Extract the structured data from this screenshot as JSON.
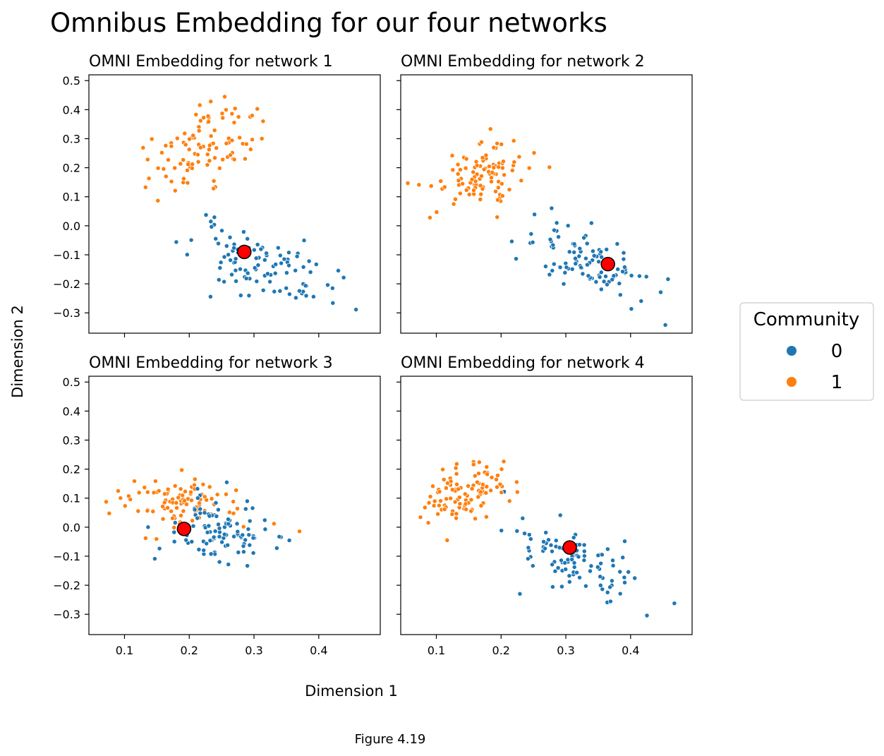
{
  "figure": {
    "title": "Omnibus Embedding for our four networks",
    "xlabel": "Dimension 1",
    "ylabel": "Dimension 2",
    "caption": "Figure 4.19"
  },
  "legend": {
    "title": "Community",
    "placement": "center-right, outside",
    "entries": [
      {
        "label": "0",
        "color": "#1f77b4"
      },
      {
        "label": "1",
        "color": "#ff7f0e"
      }
    ]
  },
  "colors": {
    "community_0": "#1f77b4",
    "community_1": "#ff7f0e",
    "marker": "#ff0000"
  },
  "chart_data": [
    {
      "type": "scatter",
      "title": "OMNI Embedding for network 1",
      "xlim": [
        0.045,
        0.495
      ],
      "ylim": [
        -0.37,
        0.52
      ],
      "xticks": [
        0.1,
        0.2,
        0.3,
        0.4
      ],
      "xtick_labels": [
        "0.1",
        "0.2",
        "0.3",
        "0.4"
      ],
      "yticks": [
        -0.3,
        -0.2,
        -0.1,
        0.0,
        0.1,
        0.2,
        0.3,
        0.4,
        0.5
      ],
      "ytick_labels": [
        "−0.3",
        "−0.2",
        "−0.1",
        "0.0",
        "0.1",
        "0.2",
        "0.3",
        "0.4",
        "0.5"
      ],
      "show_xticklabels": false,
      "show_yticklabels": true,
      "clusters": [
        {
          "community": 0,
          "cx": 0.31,
          "cy": -0.14,
          "sx": 0.055,
          "sy": 0.065,
          "rho": -0.55,
          "n": 100,
          "seed": 11
        },
        {
          "community": 1,
          "cx": 0.22,
          "cy": 0.27,
          "sx": 0.04,
          "sy": 0.07,
          "rho": 0.45,
          "n": 100,
          "seed": 12
        }
      ],
      "highlight": {
        "x": 0.285,
        "y": -0.09
      }
    },
    {
      "type": "scatter",
      "title": "OMNI Embedding for network 2",
      "xlim": [
        0.045,
        0.495
      ],
      "ylim": [
        -0.37,
        0.52
      ],
      "xticks": [
        0.1,
        0.2,
        0.3,
        0.4
      ],
      "xtick_labels": [
        "0.1",
        "0.2",
        "0.3",
        "0.4"
      ],
      "yticks": [
        -0.3,
        -0.2,
        -0.1,
        0.0,
        0.1,
        0.2,
        0.3,
        0.4,
        0.5
      ],
      "ytick_labels": [
        "−0.3",
        "−0.2",
        "−0.1",
        "0.0",
        "0.1",
        "0.2",
        "0.3",
        "0.4",
        "0.5"
      ],
      "show_xticklabels": false,
      "show_yticklabels": false,
      "clusters": [
        {
          "community": 0,
          "cx": 0.33,
          "cy": -0.12,
          "sx": 0.05,
          "sy": 0.065,
          "rho": -0.55,
          "n": 100,
          "seed": 21
        },
        {
          "community": 1,
          "cx": 0.165,
          "cy": 0.18,
          "sx": 0.035,
          "sy": 0.055,
          "rho": 0.4,
          "n": 100,
          "seed": 22
        }
      ],
      "highlight": {
        "x": 0.365,
        "y": -0.132
      }
    },
    {
      "type": "scatter",
      "title": "OMNI Embedding for network 3",
      "xlim": [
        0.045,
        0.495
      ],
      "ylim": [
        -0.37,
        0.52
      ],
      "xticks": [
        0.1,
        0.2,
        0.3,
        0.4
      ],
      "xtick_labels": [
        "0.1",
        "0.2",
        "0.3",
        "0.4"
      ],
      "yticks": [
        -0.3,
        -0.2,
        -0.1,
        0.0,
        0.1,
        0.2,
        0.3,
        0.4,
        0.5
      ],
      "ytick_labels": [
        "−0.3",
        "−0.2",
        "−0.1",
        "0.0",
        "0.1",
        "0.2",
        "0.3",
        "0.4",
        "0.5"
      ],
      "show_xticklabels": true,
      "show_yticklabels": true,
      "clusters": [
        {
          "community": 1,
          "cx": 0.185,
          "cy": 0.09,
          "sx": 0.05,
          "sy": 0.045,
          "rho": 0.0,
          "n": 100,
          "seed": 32
        },
        {
          "community": 0,
          "cx": 0.245,
          "cy": -0.01,
          "sx": 0.038,
          "sy": 0.055,
          "rho": -0.2,
          "n": 100,
          "seed": 31
        }
      ],
      "highlight": {
        "x": 0.192,
        "y": -0.006
      }
    },
    {
      "type": "scatter",
      "title": "OMNI Embedding for network 4",
      "xlim": [
        0.045,
        0.495
      ],
      "ylim": [
        -0.37,
        0.52
      ],
      "xticks": [
        0.1,
        0.2,
        0.3,
        0.4
      ],
      "xtick_labels": [
        "0.1",
        "0.2",
        "0.3",
        "0.4"
      ],
      "yticks": [
        -0.3,
        -0.2,
        -0.1,
        0.0,
        0.1,
        0.2,
        0.3,
        0.4,
        0.5
      ],
      "ytick_labels": [
        "−0.3",
        "−0.2",
        "−0.1",
        "0.0",
        "0.1",
        "0.2",
        "0.3",
        "0.4",
        "0.5"
      ],
      "show_xticklabels": true,
      "show_yticklabels": false,
      "clusters": [
        {
          "community": 0,
          "cx": 0.32,
          "cy": -0.12,
          "sx": 0.045,
          "sy": 0.065,
          "rho": -0.55,
          "n": 100,
          "seed": 41
        },
        {
          "community": 1,
          "cx": 0.14,
          "cy": 0.12,
          "sx": 0.035,
          "sy": 0.05,
          "rho": 0.35,
          "n": 100,
          "seed": 42
        }
      ],
      "highlight": {
        "x": 0.306,
        "y": -0.07
      }
    }
  ]
}
